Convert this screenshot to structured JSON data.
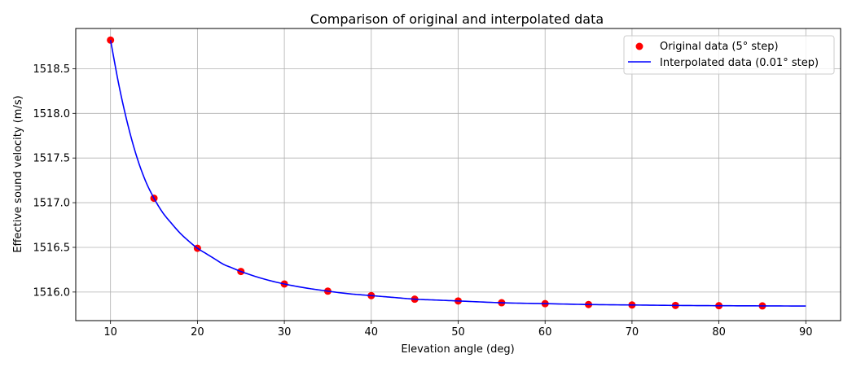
{
  "chart_data": {
    "type": "line",
    "title": "Comparison of original and interpolated data",
    "xlabel": "Elevation angle (deg)",
    "ylabel": "Effective sound velocity (m/s)",
    "xlim": [
      6,
      94
    ],
    "ylim": [
      1515.68,
      1518.95
    ],
    "xticks": [
      10,
      20,
      30,
      40,
      50,
      60,
      70,
      80,
      90
    ],
    "yticks": [
      1516.0,
      1516.5,
      1517.0,
      1517.5,
      1518.0,
      1518.5
    ],
    "grid": true,
    "legend_position": "top-right",
    "series": [
      {
        "name": "Original data (5° step)",
        "kind": "scatter",
        "color": "#ff0000",
        "x": [
          10,
          15,
          20,
          25,
          30,
          35,
          40,
          45,
          50,
          55,
          60,
          65,
          70,
          75,
          80,
          85
        ],
        "y": [
          1518.82,
          1517.05,
          1516.49,
          1516.23,
          1516.09,
          1516.01,
          1515.96,
          1515.92,
          1515.9,
          1515.88,
          1515.87,
          1515.86,
          1515.855,
          1515.85,
          1515.847,
          1515.845
        ]
      },
      {
        "name": "Interpolated data (0.01° step)",
        "kind": "line",
        "color": "#0000ff",
        "x": [
          10,
          11,
          12,
          13,
          14,
          15,
          16,
          17,
          18,
          19,
          20,
          21,
          22,
          23,
          24,
          25,
          27.5,
          30,
          32.5,
          35,
          37.5,
          40,
          42.5,
          45,
          47.5,
          50,
          55,
          60,
          65,
          70,
          75,
          80,
          85,
          90
        ],
        "y": [
          1518.82,
          1518.3,
          1517.87,
          1517.52,
          1517.25,
          1517.05,
          1516.89,
          1516.77,
          1516.66,
          1516.57,
          1516.49,
          1516.43,
          1516.37,
          1516.31,
          1516.27,
          1516.23,
          1516.15,
          1516.09,
          1516.045,
          1516.01,
          1515.98,
          1515.96,
          1515.94,
          1515.92,
          1515.91,
          1515.9,
          1515.88,
          1515.87,
          1515.86,
          1515.855,
          1515.85,
          1515.847,
          1515.845,
          1515.843
        ]
      }
    ]
  }
}
